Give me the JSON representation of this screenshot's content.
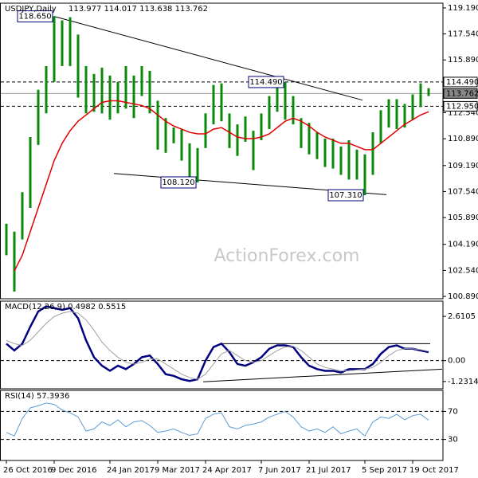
{
  "chart_data": [
    {
      "type": "ohlc",
      "title": "USDJPY,Daily",
      "subtitle": "113.977 114.017 113.638 113.762",
      "watermark": "ActionForex.com",
      "ylim": [
        100.74,
        119.49
      ],
      "yticks": [
        {
          "value": 119.19,
          "label": "119.190"
        },
        {
          "value": 117.54,
          "label": "117.540"
        },
        {
          "value": 115.89,
          "label": "115.890"
        },
        {
          "value": 112.54,
          "label": "112.540"
        },
        {
          "value": 110.89,
          "label": "110.890"
        },
        {
          "value": 109.19,
          "label": "109.190"
        },
        {
          "value": 107.54,
          "label": "107.540"
        },
        {
          "value": 105.89,
          "label": "105.890"
        },
        {
          "value": 104.19,
          "label": "104.190"
        },
        {
          "value": 102.54,
          "label": "102.540"
        },
        {
          "value": 100.89,
          "label": "100.890"
        }
      ],
      "color": "#0a8a0a",
      "high": [
        105.5,
        105.0,
        107.5,
        111.0,
        114.0,
        115.5,
        118.66,
        118.4,
        118.6,
        117.5,
        115.5,
        115.0,
        115.4,
        114.9,
        114.5,
        115.5,
        114.9,
        115.5,
        115.2,
        113.3,
        112.2,
        111.6,
        111.5,
        110.6,
        110.3,
        112.5,
        114.3,
        114.4,
        112.5,
        111.8,
        112.3,
        111.4,
        112.5,
        113.6,
        114.3,
        114.49,
        113.6,
        112.2,
        111.9,
        111.3,
        110.9,
        110.9,
        110.4,
        110.8,
        110.2,
        109.9,
        111.3,
        112.7,
        113.4,
        113.4,
        113.1,
        113.7,
        114.4,
        114.1
      ],
      "low": [
        103.5,
        101.2,
        104.5,
        106.5,
        110.5,
        112.5,
        114.5,
        115.5,
        115.5,
        113.5,
        112.5,
        112.6,
        112.5,
        112.1,
        112.5,
        112.8,
        112.2,
        113.6,
        112.5,
        110.2,
        110.0,
        110.6,
        109.5,
        108.4,
        108.12,
        110.3,
        111.8,
        112.0,
        110.3,
        109.8,
        110.7,
        108.9,
        110.8,
        111.5,
        112.6,
        112.1,
        111.8,
        110.3,
        109.9,
        109.6,
        109.1,
        109.0,
        108.6,
        108.3,
        108.3,
        107.31,
        108.6,
        110.6,
        111.6,
        111.5,
        111.6,
        112.1,
        112.9,
        113.6
      ],
      "series": [
        {
          "color": "#e00000",
          "values": [
            null,
            102.5,
            103.5,
            105.0,
            106.5,
            108.0,
            109.5,
            110.6,
            111.4,
            112.0,
            112.4,
            112.8,
            113.2,
            113.3,
            113.3,
            113.2,
            113.1,
            113.0,
            112.8,
            112.4,
            112.0,
            111.7,
            111.5,
            111.3,
            111.2,
            111.2,
            111.5,
            111.6,
            111.3,
            111.0,
            110.9,
            110.9,
            111.0,
            111.2,
            111.6,
            112.0,
            112.2,
            112.0,
            111.7,
            111.3,
            111.0,
            110.8,
            110.6,
            110.6,
            110.4,
            110.2,
            110.2,
            110.6,
            111.0,
            111.4,
            111.8,
            112.1,
            112.4,
            112.6
          ]
        }
      ],
      "levels": [
        {
          "value": 114.49,
          "label": "114.490",
          "dash": true
        },
        {
          "value": 113.762,
          "label": "113.762",
          "dash": false
        },
        {
          "value": 112.95,
          "label": "112.950",
          "dash": true
        }
      ],
      "lines": [
        {
          "x": [
            6,
            44.7
          ],
          "y": [
            118.65,
            113.34
          ]
        },
        {
          "x": [
            13.5,
            47.7
          ],
          "y": [
            108.69,
            107.34
          ]
        }
      ],
      "annotations": [
        {
          "x": 6,
          "value": 118.65,
          "label": "118.650"
        },
        {
          "x": 35,
          "value": 114.49,
          "label": "114.490"
        },
        {
          "x": 24,
          "value": 108.12,
          "label": "108.120"
        },
        {
          "x": 45,
          "value": 107.31,
          "label": "107.310"
        }
      ]
    },
    {
      "type": "line",
      "title": "MACD(12,26,9) 0.4982 0.5515",
      "ylim": [
        -1.66,
        3.51
      ],
      "yticks": [
        2.6105,
        {
          "value": 0,
          "label": "0.00"
        },
        -1.2314
      ],
      "series": [
        {
          "color": "#000080",
          "width": 2.5,
          "values": [
            1.0,
            0.6,
            1.0,
            2.0,
            2.9,
            3.2,
            3.1,
            3.0,
            3.1,
            2.5,
            1.2,
            0.2,
            -0.3,
            -0.6,
            -0.3,
            -0.5,
            -0.2,
            0.2,
            0.3,
            -0.2,
            -0.8,
            -0.9,
            -1.1,
            -1.2,
            -1.1,
            0.0,
            0.8,
            1.0,
            0.5,
            -0.2,
            -0.3,
            -0.1,
            0.2,
            0.7,
            0.9,
            0.9,
            0.8,
            0.2,
            -0.3,
            -0.5,
            -0.6,
            -0.6,
            -0.7,
            -0.5,
            -0.5,
            -0.5,
            -0.2,
            0.4,
            0.8,
            0.9,
            0.7,
            0.7,
            0.6,
            0.4982
          ]
        },
        {
          "color": "#a0a0a0",
          "width": 1,
          "values": [
            1.2,
            1.0,
            0.9,
            1.2,
            1.7,
            2.2,
            2.6,
            2.8,
            2.9,
            2.8,
            2.4,
            1.8,
            1.1,
            0.6,
            0.2,
            -0.1,
            -0.2,
            -0.1,
            0.1,
            0.1,
            -0.2,
            -0.5,
            -0.8,
            -1.0,
            -1.1,
            -0.8,
            -0.2,
            0.4,
            0.6,
            0.3,
            0.0,
            -0.1,
            0.0,
            0.3,
            0.6,
            0.8,
            0.85,
            0.6,
            0.2,
            -0.2,
            -0.4,
            -0.5,
            -0.6,
            -0.6,
            -0.55,
            -0.5,
            -0.4,
            -0.1,
            0.3,
            0.6,
            0.7,
            0.7,
            0.65,
            0.5515
          ]
        }
      ],
      "levels": [
        {
          "value": 0,
          "dash": true
        }
      ],
      "lines": [
        {
          "x": [
            27,
            53.2
          ],
          "y": [
            1.0,
            1.0
          ]
        },
        {
          "x": [
            24.7,
            54.7
          ],
          "y": [
            -1.25,
            -0.5
          ]
        }
      ]
    },
    {
      "type": "line",
      "title": "RSI(14) 57.3936",
      "ylim": [
        0,
        100
      ],
      "yticks": [
        70,
        30
      ],
      "categories": [
        "26 Oct 2016",
        null,
        null,
        null,
        null,
        null,
        "9 Dec 2016",
        null,
        null,
        null,
        null,
        null,
        null,
        "24 Jan 2017",
        null,
        null,
        null,
        null,
        null,
        "9 Mar 2017",
        null,
        null,
        null,
        null,
        null,
        "24 Apr 2017",
        null,
        null,
        null,
        null,
        null,
        null,
        "7 Jun 2017",
        null,
        null,
        null,
        null,
        null,
        "21 Jul 2017",
        null,
        null,
        null,
        null,
        null,
        null,
        "5 Sep 2017",
        null,
        null,
        null,
        null,
        null,
        "19 Oct 2017",
        null,
        null
      ],
      "series": [
        {
          "color": "#5b9bd5",
          "width": 1,
          "values": [
            40,
            35,
            60,
            75,
            78,
            82,
            80,
            72,
            68,
            62,
            42,
            45,
            55,
            50,
            58,
            48,
            55,
            57,
            50,
            40,
            42,
            45,
            40,
            36,
            38,
            60,
            66,
            68,
            48,
            45,
            50,
            52,
            55,
            62,
            66,
            70,
            62,
            48,
            42,
            45,
            40,
            48,
            38,
            42,
            45,
            35,
            55,
            62,
            60,
            66,
            58,
            64,
            66,
            57.3936
          ]
        }
      ],
      "levels": [
        {
          "value": 70,
          "dash": true
        },
        {
          "value": 30,
          "dash": true
        }
      ]
    }
  ]
}
